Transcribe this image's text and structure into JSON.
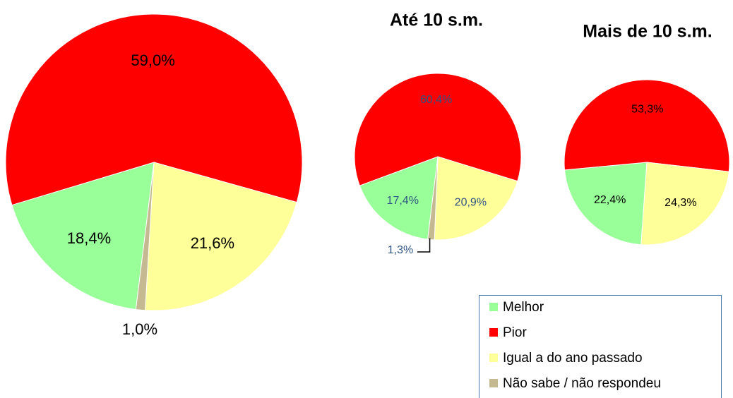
{
  "chart_data": [
    {
      "type": "pie",
      "categories": [
        "Melhor",
        "Pior",
        "Igual a do ano passado",
        "Não sabe / não respondeu"
      ],
      "values": [
        18.4,
        59.0,
        21.6,
        1.0
      ],
      "value_labels": [
        "18,4%",
        "59,0%",
        "21,6%",
        "1,0%"
      ],
      "colors": [
        "#99ff99",
        "#ff0000",
        "#ffff99",
        "#c4b991"
      ],
      "legend": "bottom-right"
    },
    {
      "type": "pie",
      "title": "Até 10 s.m.",
      "categories": [
        "Melhor",
        "Pior",
        "Igual a do ano passado",
        "Não sabe / não respondeu"
      ],
      "values": [
        17.4,
        60.4,
        20.9,
        1.3
      ],
      "value_labels": [
        "17,4%",
        "60,4%",
        "20,9%",
        "1,3%"
      ],
      "colors": [
        "#99ff99",
        "#ff0000",
        "#ffff99",
        "#c4b991"
      ]
    },
    {
      "type": "pie",
      "title": "Mais de 10 s.m.",
      "categories": [
        "Melhor",
        "Pior",
        "Igual a do ano passado"
      ],
      "values": [
        22.4,
        53.3,
        24.3
      ],
      "value_labels": [
        "22,4%",
        "53,3%",
        "24,3%"
      ],
      "colors": [
        "#99ff99",
        "#ff0000",
        "#ffff99"
      ]
    }
  ]
}
